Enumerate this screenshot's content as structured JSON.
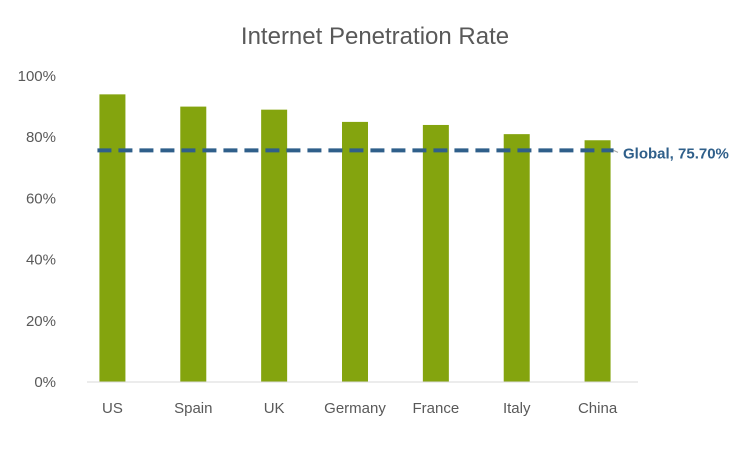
{
  "chart_data": {
    "type": "bar",
    "title": "Internet Penetration Rate",
    "categories": [
      "US",
      "Spain",
      "UK",
      "Germany",
      "France",
      "Italy",
      "China"
    ],
    "values": [
      94,
      90,
      89,
      85,
      84,
      81,
      79
    ],
    "value_format": "percent",
    "ylim": [
      0,
      100
    ],
    "yticks": [
      "0%",
      "20%",
      "40%",
      "60%",
      "80%",
      "100%"
    ],
    "xlabel": "",
    "ylabel": "",
    "grid": false,
    "legend": "none",
    "bar_color": "#84A40E",
    "reference_line": {
      "value": 75.7,
      "label": "Global, 75.70%",
      "color": "#2F5F8A",
      "style": "dashed"
    }
  }
}
